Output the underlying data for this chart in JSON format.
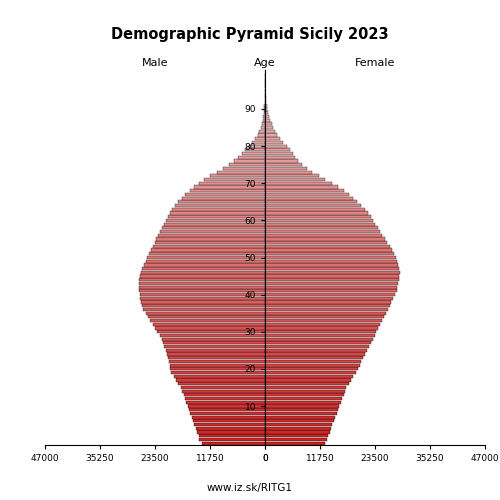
{
  "title": "Demographic Pyramid Sicily 2023",
  "subtitle_left": "Male",
  "subtitle_center": "Age",
  "subtitle_right": "Female",
  "footer": "www.iz.sk/RITG1",
  "xlim": 47000,
  "bar_height": 0.85,
  "ages": [
    0,
    1,
    2,
    3,
    4,
    5,
    6,
    7,
    8,
    9,
    10,
    11,
    12,
    13,
    14,
    15,
    16,
    17,
    18,
    19,
    20,
    21,
    22,
    23,
    24,
    25,
    26,
    27,
    28,
    29,
    30,
    31,
    32,
    33,
    34,
    35,
    36,
    37,
    38,
    39,
    40,
    41,
    42,
    43,
    44,
    45,
    46,
    47,
    48,
    49,
    50,
    51,
    52,
    53,
    54,
    55,
    56,
    57,
    58,
    59,
    60,
    61,
    62,
    63,
    64,
    65,
    66,
    67,
    68,
    69,
    70,
    71,
    72,
    73,
    74,
    75,
    76,
    77,
    78,
    79,
    80,
    81,
    82,
    83,
    84,
    85,
    86,
    87,
    88,
    89,
    90,
    91,
    92,
    93,
    94,
    95,
    96,
    97,
    98,
    99
  ],
  "male": [
    13500,
    14000,
    14200,
    14500,
    14800,
    15100,
    15400,
    15700,
    16000,
    16200,
    16500,
    16800,
    17100,
    17400,
    17700,
    18000,
    18500,
    19000,
    19500,
    20000,
    20200,
    20400,
    20600,
    20800,
    21000,
    21200,
    21500,
    21800,
    22100,
    22500,
    23000,
    23500,
    24000,
    24500,
    25000,
    25500,
    26000,
    26300,
    26500,
    26700,
    26800,
    26900,
    27000,
    27000,
    26900,
    26700,
    26500,
    26200,
    25900,
    25500,
    25200,
    24800,
    24400,
    24000,
    23600,
    23200,
    22800,
    22400,
    22000,
    21600,
    21200,
    20800,
    20400,
    19800,
    19200,
    18500,
    17800,
    17000,
    16100,
    15200,
    14200,
    13000,
    11700,
    10300,
    8900,
    7700,
    6700,
    5800,
    5000,
    4200,
    3500,
    2800,
    2100,
    1600,
    1200,
    900,
    700,
    500,
    370,
    270,
    180,
    120,
    75,
    45,
    25,
    14,
    7,
    3,
    1,
    0
  ],
  "female": [
    12800,
    13200,
    13500,
    13800,
    14100,
    14400,
    14700,
    15000,
    15300,
    15600,
    15900,
    16200,
    16500,
    16800,
    17100,
    17400,
    17900,
    18400,
    18900,
    19400,
    19800,
    20200,
    20600,
    21000,
    21400,
    21800,
    22200,
    22600,
    23000,
    23400,
    23800,
    24200,
    24600,
    25000,
    25400,
    25800,
    26200,
    26600,
    27000,
    27400,
    27800,
    28100,
    28300,
    28500,
    28600,
    28700,
    28800,
    28700,
    28500,
    28200,
    27900,
    27500,
    27100,
    26600,
    26100,
    25600,
    25100,
    24600,
    24100,
    23600,
    23100,
    22600,
    22000,
    21300,
    20500,
    19700,
    18900,
    18000,
    16900,
    15700,
    14300,
    12900,
    11500,
    10100,
    8900,
    7900,
    7100,
    6500,
    6000,
    5400,
    4700,
    3900,
    3200,
    2600,
    2100,
    1700,
    1400,
    1100,
    850,
    650,
    480,
    340,
    230,
    150,
    95,
    55,
    30,
    15,
    6,
    2
  ],
  "color_young": "#cc2222",
  "color_old": "#e8c0c0",
  "age_ticks": [
    10,
    20,
    30,
    40,
    50,
    60,
    70,
    80,
    90
  ]
}
